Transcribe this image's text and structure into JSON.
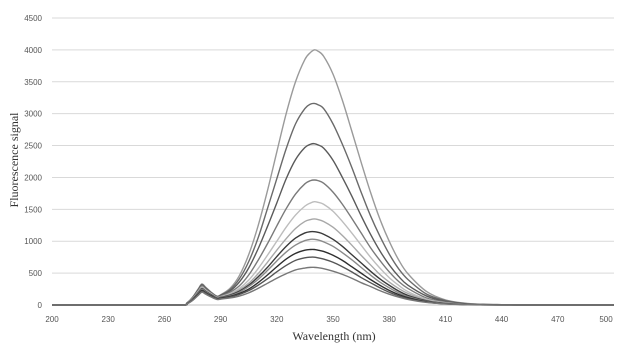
{
  "chart_data": {
    "type": "line",
    "title": "",
    "xlabel": "Wavelength (nm)",
    "ylabel": "Fluorescence signal",
    "xlim": [
      200,
      500
    ],
    "ylim": [
      0,
      4500
    ],
    "xticks": [
      "200",
      "230",
      "260",
      "290",
      "320",
      "350",
      "380",
      "410",
      "440",
      "470",
      "500"
    ],
    "yticks": [
      "0",
      "500",
      "1000",
      "1500",
      "2000",
      "2500",
      "3000",
      "3500",
      "4000",
      "4500"
    ],
    "grid": "horizontal",
    "legend": "none",
    "colors": {
      "series": [
        "#9a9a9a",
        "#6a6a6a",
        "#5a5a5a",
        "#7a7a7a",
        "#bdbdbd",
        "#a8a8a8",
        "#3a3a3a",
        "#8a8a8a",
        "#2e2e2e",
        "#555555",
        "#777777"
      ],
      "grid": "#d9d9d9",
      "axis": "#bfbfbf"
    },
    "x": [
      200,
      250,
      270,
      272,
      275,
      278,
      280,
      282,
      285,
      288,
      290,
      295,
      300,
      305,
      310,
      315,
      320,
      325,
      330,
      335,
      338,
      340,
      342,
      345,
      350,
      355,
      360,
      365,
      370,
      375,
      380,
      385,
      390,
      400,
      410,
      420,
      430,
      440,
      450,
      460,
      470,
      480,
      490,
      500
    ],
    "series": [
      {
        "values": [
          0,
          0,
          0,
          30,
          120,
          250,
          330,
          280,
          200,
          140,
          160,
          260,
          460,
          790,
          1240,
          1790,
          2400,
          3000,
          3500,
          3850,
          3960,
          4000,
          3980,
          3900,
          3620,
          3210,
          2730,
          2240,
          1770,
          1350,
          1000,
          710,
          490,
          210,
          80,
          30,
          10,
          5,
          2,
          1,
          0,
          0,
          0,
          0
        ]
      },
      {
        "values": [
          0,
          0,
          0,
          30,
          115,
          240,
          320,
          270,
          195,
          135,
          155,
          240,
          410,
          680,
          1050,
          1510,
          1980,
          2450,
          2840,
          3080,
          3150,
          3160,
          3140,
          3080,
          2840,
          2520,
          2160,
          1770,
          1400,
          1080,
          800,
          570,
          400,
          170,
          70,
          25,
          10,
          5,
          2,
          1,
          0,
          0,
          0,
          0
        ]
      },
      {
        "values": [
          0,
          0,
          0,
          30,
          110,
          230,
          310,
          260,
          190,
          130,
          150,
          220,
          360,
          580,
          880,
          1230,
          1600,
          1980,
          2280,
          2470,
          2520,
          2530,
          2510,
          2460,
          2270,
          2000,
          1710,
          1400,
          1110,
          850,
          630,
          450,
          310,
          140,
          55,
          20,
          8,
          3,
          1,
          0,
          0,
          0,
          0,
          0
        ]
      },
      {
        "values": [
          0,
          0,
          0,
          28,
          105,
          220,
          300,
          250,
          185,
          125,
          140,
          200,
          300,
          470,
          700,
          960,
          1240,
          1510,
          1740,
          1900,
          1950,
          1960,
          1950,
          1910,
          1770,
          1580,
          1360,
          1130,
          900,
          700,
          520,
          370,
          260,
          110,
          45,
          15,
          6,
          2,
          1,
          0,
          0,
          0,
          0,
          0
        ]
      },
      {
        "values": [
          0,
          0,
          0,
          25,
          100,
          210,
          280,
          235,
          175,
          120,
          130,
          180,
          260,
          390,
          570,
          780,
          1000,
          1220,
          1410,
          1550,
          1600,
          1620,
          1610,
          1580,
          1470,
          1310,
          1130,
          940,
          750,
          580,
          430,
          310,
          210,
          90,
          35,
          12,
          5,
          2,
          1,
          0,
          0,
          0,
          0,
          0
        ]
      },
      {
        "values": [
          0,
          0,
          0,
          25,
          95,
          200,
          270,
          225,
          165,
          115,
          125,
          165,
          235,
          340,
          490,
          670,
          860,
          1040,
          1200,
          1310,
          1340,
          1350,
          1340,
          1310,
          1220,
          1090,
          940,
          780,
          630,
          480,
          360,
          260,
          180,
          75,
          30,
          10,
          4,
          1,
          0,
          0,
          0,
          0,
          0,
          0
        ]
      },
      {
        "values": [
          0,
          0,
          0,
          22,
          90,
          190,
          255,
          215,
          160,
          110,
          120,
          155,
          215,
          310,
          440,
          590,
          760,
          920,
          1050,
          1130,
          1150,
          1150,
          1140,
          1110,
          1030,
          920,
          790,
          660,
          530,
          410,
          310,
          220,
          150,
          65,
          25,
          10,
          4,
          1,
          0,
          0,
          0,
          0,
          0,
          0
        ]
      },
      {
        "values": [
          0,
          0,
          0,
          22,
          85,
          180,
          245,
          205,
          150,
          105,
          115,
          145,
          200,
          290,
          400,
          540,
          690,
          830,
          940,
          1010,
          1030,
          1030,
          1020,
          990,
          920,
          820,
          710,
          590,
          470,
          360,
          270,
          190,
          130,
          55,
          22,
          8,
          3,
          1,
          0,
          0,
          0,
          0,
          0,
          0
        ]
      },
      {
        "values": [
          0,
          0,
          0,
          20,
          80,
          170,
          230,
          195,
          145,
          100,
          108,
          135,
          180,
          250,
          350,
          470,
          600,
          720,
          810,
          860,
          870,
          870,
          860,
          840,
          780,
          700,
          600,
          500,
          400,
          310,
          230,
          165,
          115,
          50,
          20,
          7,
          3,
          1,
          0,
          0,
          0,
          0,
          0,
          0
        ]
      },
      {
        "values": [
          0,
          0,
          0,
          18,
          75,
          160,
          215,
          185,
          135,
          95,
          100,
          125,
          165,
          225,
          310,
          410,
          520,
          620,
          700,
          740,
          750,
          750,
          740,
          720,
          670,
          600,
          520,
          430,
          350,
          270,
          200,
          145,
          100,
          44,
          18,
          6,
          2,
          1,
          0,
          0,
          0,
          0,
          0,
          0
        ]
      },
      {
        "values": [
          0,
          0,
          0,
          15,
          70,
          150,
          200,
          170,
          125,
          88,
          92,
          110,
          140,
          190,
          260,
          340,
          420,
          490,
          550,
          580,
          590,
          590,
          585,
          570,
          530,
          480,
          420,
          350,
          290,
          225,
          170,
          125,
          88,
          40,
          16,
          6,
          2,
          1,
          0,
          0,
          0,
          0,
          0,
          0
        ]
      }
    ]
  }
}
